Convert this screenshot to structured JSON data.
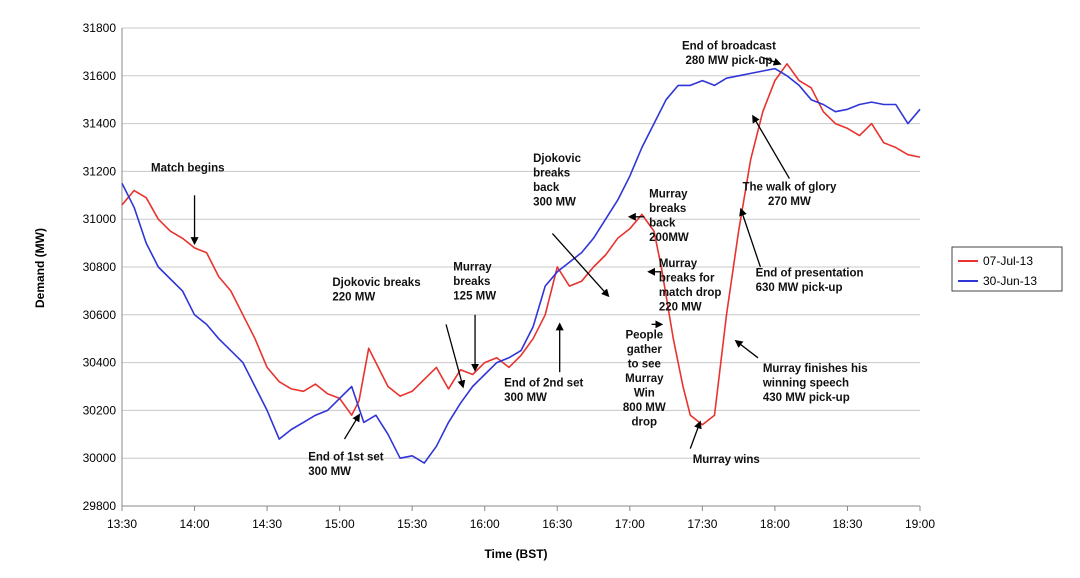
{
  "chart_data": {
    "type": "line",
    "title": "",
    "xlabel": "Time (BST)",
    "ylabel": "Demand (MW)",
    "ylim": [
      29800,
      31800
    ],
    "yticks": [
      29800,
      30000,
      30200,
      30400,
      30600,
      30800,
      31000,
      31200,
      31400,
      31600,
      31800
    ],
    "xticks": [
      "13:30",
      "14:00",
      "14:30",
      "15:00",
      "15:30",
      "16:00",
      "16:30",
      "17:00",
      "17:30",
      "18:00",
      "18:30",
      "19:00"
    ],
    "xlim": [
      "13:30",
      "19:00"
    ],
    "grid": "horizontal",
    "legend_position": "right",
    "series": [
      {
        "name": "07-Jul-13",
        "color": "#e8332e",
        "points": [
          [
            "13:30",
            31060
          ],
          [
            "13:35",
            31120
          ],
          [
            "13:40",
            31090
          ],
          [
            "13:45",
            31000
          ],
          [
            "13:50",
            30950
          ],
          [
            "13:55",
            30920
          ],
          [
            "14:00",
            30880
          ],
          [
            "14:05",
            30860
          ],
          [
            "14:10",
            30760
          ],
          [
            "14:15",
            30700
          ],
          [
            "14:20",
            30600
          ],
          [
            "14:25",
            30500
          ],
          [
            "14:30",
            30380
          ],
          [
            "14:35",
            30320
          ],
          [
            "14:40",
            30290
          ],
          [
            "14:45",
            30280
          ],
          [
            "14:50",
            30310
          ],
          [
            "14:55",
            30270
          ],
          [
            "15:00",
            30250
          ],
          [
            "15:05",
            30180
          ],
          [
            "15:08",
            30240
          ],
          [
            "15:12",
            30460
          ],
          [
            "15:16",
            30380
          ],
          [
            "15:20",
            30300
          ],
          [
            "15:25",
            30260
          ],
          [
            "15:30",
            30280
          ],
          [
            "15:35",
            30330
          ],
          [
            "15:40",
            30380
          ],
          [
            "15:45",
            30290
          ],
          [
            "15:50",
            30370
          ],
          [
            "15:55",
            30350
          ],
          [
            "16:00",
            30400
          ],
          [
            "16:05",
            30420
          ],
          [
            "16:10",
            30380
          ],
          [
            "16:15",
            30430
          ],
          [
            "16:20",
            30500
          ],
          [
            "16:25",
            30600
          ],
          [
            "16:30",
            30800
          ],
          [
            "16:35",
            30720
          ],
          [
            "16:40",
            30740
          ],
          [
            "16:45",
            30800
          ],
          [
            "16:50",
            30850
          ],
          [
            "16:55",
            30920
          ],
          [
            "17:00",
            30960
          ],
          [
            "17:05",
            31020
          ],
          [
            "17:10",
            30950
          ],
          [
            "17:13",
            30800
          ],
          [
            "17:18",
            30500
          ],
          [
            "17:22",
            30300
          ],
          [
            "17:25",
            30180
          ],
          [
            "17:30",
            30140
          ],
          [
            "17:35",
            30180
          ],
          [
            "17:40",
            30600
          ],
          [
            "17:45",
            30950
          ],
          [
            "17:50",
            31250
          ],
          [
            "17:55",
            31450
          ],
          [
            "18:00",
            31580
          ],
          [
            "18:05",
            31650
          ],
          [
            "18:10",
            31580
          ],
          [
            "18:15",
            31550
          ],
          [
            "18:20",
            31450
          ],
          [
            "18:25",
            31400
          ],
          [
            "18:30",
            31380
          ],
          [
            "18:35",
            31350
          ],
          [
            "18:40",
            31400
          ],
          [
            "18:45",
            31320
          ],
          [
            "18:50",
            31300
          ],
          [
            "18:55",
            31270
          ],
          [
            "19:00",
            31260
          ]
        ]
      },
      {
        "name": "30-Jun-13",
        "color": "#3035d8",
        "points": [
          [
            "13:30",
            31150
          ],
          [
            "13:35",
            31050
          ],
          [
            "13:40",
            30900
          ],
          [
            "13:45",
            30800
          ],
          [
            "13:50",
            30750
          ],
          [
            "13:55",
            30700
          ],
          [
            "14:00",
            30600
          ],
          [
            "14:05",
            30560
          ],
          [
            "14:10",
            30500
          ],
          [
            "14:15",
            30450
          ],
          [
            "14:20",
            30400
          ],
          [
            "14:25",
            30300
          ],
          [
            "14:30",
            30200
          ],
          [
            "14:35",
            30080
          ],
          [
            "14:40",
            30120
          ],
          [
            "14:45",
            30150
          ],
          [
            "14:50",
            30180
          ],
          [
            "14:55",
            30200
          ],
          [
            "15:00",
            30250
          ],
          [
            "15:05",
            30300
          ],
          [
            "15:10",
            30150
          ],
          [
            "15:15",
            30180
          ],
          [
            "15:20",
            30100
          ],
          [
            "15:25",
            30000
          ],
          [
            "15:30",
            30010
          ],
          [
            "15:35",
            29980
          ],
          [
            "15:40",
            30050
          ],
          [
            "15:45",
            30150
          ],
          [
            "15:50",
            30230
          ],
          [
            "15:55",
            30300
          ],
          [
            "16:00",
            30350
          ],
          [
            "16:05",
            30400
          ],
          [
            "16:10",
            30420
          ],
          [
            "16:15",
            30450
          ],
          [
            "16:20",
            30550
          ],
          [
            "16:25",
            30720
          ],
          [
            "16:30",
            30780
          ],
          [
            "16:35",
            30820
          ],
          [
            "16:40",
            30860
          ],
          [
            "16:45",
            30920
          ],
          [
            "16:50",
            31000
          ],
          [
            "16:55",
            31080
          ],
          [
            "17:00",
            31180
          ],
          [
            "17:05",
            31300
          ],
          [
            "17:10",
            31400
          ],
          [
            "17:15",
            31500
          ],
          [
            "17:20",
            31560
          ],
          [
            "17:25",
            31560
          ],
          [
            "17:30",
            31580
          ],
          [
            "17:35",
            31560
          ],
          [
            "17:40",
            31590
          ],
          [
            "17:45",
            31600
          ],
          [
            "17:50",
            31610
          ],
          [
            "17:55",
            31620
          ],
          [
            "18:00",
            31630
          ],
          [
            "18:05",
            31600
          ],
          [
            "18:10",
            31560
          ],
          [
            "18:15",
            31500
          ],
          [
            "18:20",
            31480
          ],
          [
            "18:25",
            31450
          ],
          [
            "18:30",
            31460
          ],
          [
            "18:35",
            31480
          ],
          [
            "18:40",
            31490
          ],
          [
            "18:45",
            31480
          ],
          [
            "18:50",
            31480
          ],
          [
            "18:55",
            31400
          ],
          [
            "19:00",
            31460
          ]
        ]
      }
    ],
    "annotations": [
      {
        "lines": [
          "Match begins"
        ],
        "tx": "13:42",
        "ty": 31200,
        "anchor": "start",
        "ax1": "14:00",
        "ay1": 31100,
        "ax2": "14:00",
        "ay2": 30900
      },
      {
        "lines": [
          "Djokovic breaks",
          "220 MW"
        ],
        "tx": "14:57",
        "ty": 30720,
        "anchor": "start",
        "ax1": "15:44",
        "ay1": 30560,
        "ax2": "15:51",
        "ay2": 30300
      },
      {
        "lines": [
          "Murray",
          "breaks",
          "125 MW"
        ],
        "tx": "15:47",
        "ty": 30785,
        "anchor": "start",
        "ax1": "15:56",
        "ay1": 30600,
        "ax2": "15:56",
        "ay2": 30370
      },
      {
        "lines": [
          "End of 1st set",
          "300 MW"
        ],
        "tx": "14:47",
        "ty": 29990,
        "anchor": "start",
        "ax1": "15:02",
        "ay1": 30080,
        "ax2": "15:08",
        "ay2": 30180
      },
      {
        "lines": [
          "End of 2nd set",
          "300 MW"
        ],
        "tx": "16:08",
        "ty": 30300,
        "anchor": "start",
        "ax1": "16:31",
        "ay1": 30360,
        "ax2": "16:31",
        "ay2": 30560
      },
      {
        "lines": [
          "Djokovic",
          "breaks",
          "back",
          "300 MW"
        ],
        "tx": "16:20",
        "ty": 31240,
        "anchor": "start",
        "ax1": "16:28",
        "ay1": 30940,
        "ax2": "16:51",
        "ay2": 30680
      },
      {
        "lines": [
          "Murray",
          "breaks",
          "back",
          "200MW"
        ],
        "tx": "17:08",
        "ty": 31090,
        "anchor": "start",
        "ax1": "17:06",
        "ay1": 31010,
        "ax2": "17:00",
        "ay2": 31010
      },
      {
        "lines": [
          "Murray",
          "breaks for",
          "match drop",
          "220 MW"
        ],
        "tx": "17:12",
        "ty": 30800,
        "anchor": "start",
        "ax1": "17:13",
        "ay1": 30780,
        "ax2": "17:08",
        "ay2": 30780
      },
      {
        "lines": [
          "People",
          "gather",
          "to see",
          "Murray",
          "Win",
          "800 MW",
          "drop"
        ],
        "tx": "17:06",
        "ty": 30500,
        "anchor": "middle",
        "ax1": "17:09",
        "ay1": 30560,
        "ax2": "17:13",
        "ay2": 30560
      },
      {
        "lines": [
          "Murray wins"
        ],
        "tx": "17:26",
        "ty": 29980,
        "anchor": "start",
        "ax1": "17:25",
        "ay1": 30040,
        "ax2": "17:29",
        "ay2": 30150
      },
      {
        "lines": [
          "Murray finishes his",
          "winning speech",
          "430 MW pick-up"
        ],
        "tx": "17:55",
        "ty": 30360,
        "anchor": "start",
        "ax1": "17:53",
        "ay1": 30420,
        "ax2": "17:44",
        "ay2": 30490
      },
      {
        "lines": [
          "End of presentation",
          "630 MW pick-up"
        ],
        "tx": "17:52",
        "ty": 30760,
        "anchor": "start",
        "ax1": "17:54",
        "ay1": 30800,
        "ax2": "17:46",
        "ay2": 31040
      },
      {
        "lines": [
          "The walk of glory",
          "270 MW"
        ],
        "tx": "18:06",
        "ty": 31120,
        "anchor": "middle",
        "ax1": "18:06",
        "ay1": 31170,
        "ax2": "17:51",
        "ay2": 31430
      },
      {
        "lines": [
          "End of broadcast",
          "280 MW pick-up"
        ],
        "tx": "17:41",
        "ty": 31710,
        "anchor": "middle",
        "ax1": "17:54",
        "ay1": 31680,
        "ax2": "18:02",
        "ay2": 31650
      }
    ]
  }
}
